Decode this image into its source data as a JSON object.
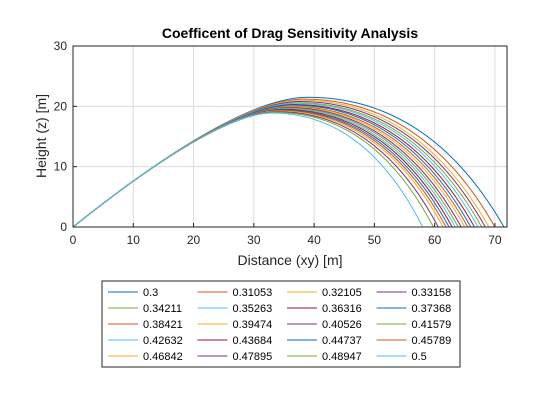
{
  "chart_data": {
    "type": "line",
    "title": "Coefficent of Drag Sensitivity Analysis",
    "xlabel": "Distance (xy) [m]",
    "ylabel": "Height (z) [m]",
    "xlim": [
      0,
      72
    ],
    "ylim": [
      0,
      30
    ],
    "xticks": [
      0,
      10,
      20,
      30,
      40,
      50,
      60,
      70
    ],
    "yticks": [
      0,
      10,
      20,
      30
    ],
    "grid": true,
    "legend_position": "bottom-outside",
    "legend_columns": 4,
    "initial_slope": 0.8,
    "series": [
      {
        "name": "0.3",
        "color": "#0072BD",
        "peak_x": 39.0,
        "peak_y": 21.5,
        "range": 71.5
      },
      {
        "name": "0.31053",
        "color": "#D95319",
        "peak_x": 38.3,
        "peak_y": 21.2,
        "range": 70.0
      },
      {
        "name": "0.32105",
        "color": "#EDB120",
        "peak_x": 37.9,
        "peak_y": 21.0,
        "range": 69.0
      },
      {
        "name": "0.33158",
        "color": "#7E2F8E",
        "peak_x": 37.6,
        "peak_y": 20.8,
        "range": 68.4
      },
      {
        "name": "0.34211",
        "color": "#77AC30",
        "peak_x": 37.3,
        "peak_y": 20.6,
        "range": 67.8
      },
      {
        "name": "0.35263",
        "color": "#4DBEEE",
        "peak_x": 37.0,
        "peak_y": 20.5,
        "range": 67.2
      },
      {
        "name": "0.36316",
        "color": "#A2142F",
        "peak_x": 36.7,
        "peak_y": 20.3,
        "range": 66.6
      },
      {
        "name": "0.37368",
        "color": "#0072BD",
        "peak_x": 36.4,
        "peak_y": 20.2,
        "range": 66.0
      },
      {
        "name": "0.38421",
        "color": "#D95319",
        "peak_x": 36.1,
        "peak_y": 20.0,
        "range": 65.5
      },
      {
        "name": "0.39474",
        "color": "#EDB120",
        "peak_x": 35.8,
        "peak_y": 19.9,
        "range": 65.0
      },
      {
        "name": "0.40526",
        "color": "#7E2F8E",
        "peak_x": 35.5,
        "peak_y": 19.8,
        "range": 64.4
      },
      {
        "name": "0.41579",
        "color": "#77AC30",
        "peak_x": 35.3,
        "peak_y": 19.7,
        "range": 63.9
      },
      {
        "name": "0.42632",
        "color": "#4DBEEE",
        "peak_x": 35.0,
        "peak_y": 19.6,
        "range": 63.4
      },
      {
        "name": "0.43684",
        "color": "#A2142F",
        "peak_x": 34.8,
        "peak_y": 19.5,
        "range": 62.9
      },
      {
        "name": "0.44737",
        "color": "#0072BD",
        "peak_x": 34.5,
        "peak_y": 19.4,
        "range": 62.4
      },
      {
        "name": "0.45789",
        "color": "#D95319",
        "peak_x": 34.3,
        "peak_y": 19.3,
        "range": 61.9
      },
      {
        "name": "0.46842",
        "color": "#EDB120",
        "peak_x": 34.1,
        "peak_y": 19.2,
        "range": 61.4
      },
      {
        "name": "0.47895",
        "color": "#7E2F8E",
        "peak_x": 33.9,
        "peak_y": 19.1,
        "range": 60.6
      },
      {
        "name": "0.48947",
        "color": "#77AC30",
        "peak_x": 33.6,
        "peak_y": 19.0,
        "range": 59.8
      },
      {
        "name": "0.5",
        "color": "#4DBEEE",
        "peak_x": 33.0,
        "peak_y": 18.9,
        "range": 58.0
      }
    ]
  }
}
